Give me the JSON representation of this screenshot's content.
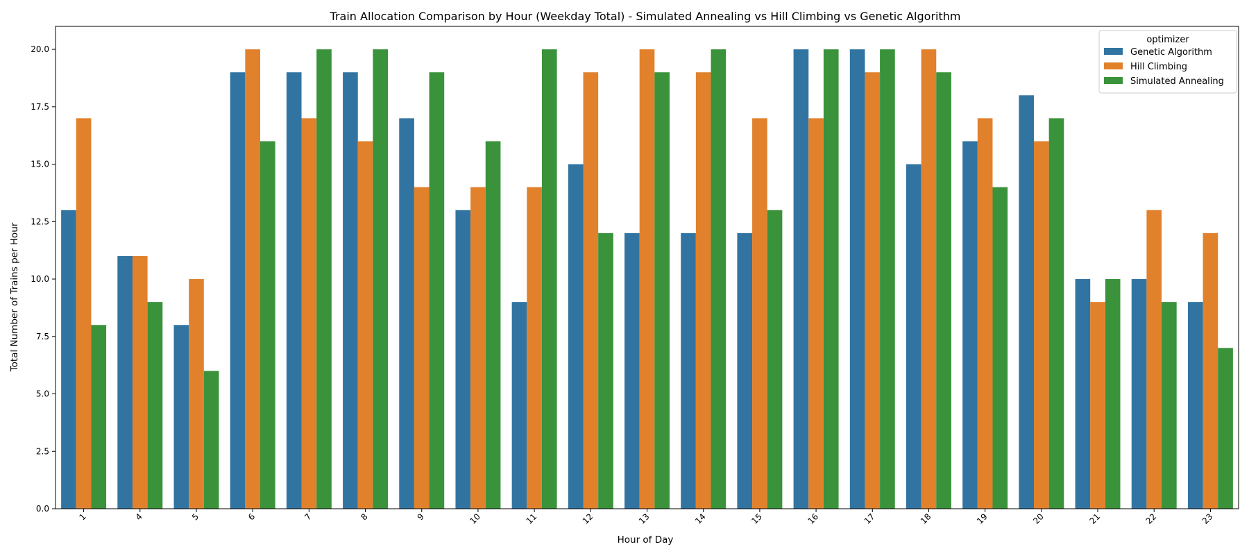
{
  "chart_data": {
    "type": "bar",
    "title": "Train Allocation Comparison by Hour (Weekday Total) - Simulated Annealing vs Hill Climbing vs Genetic Algorithm",
    "xlabel": "Hour of Day",
    "ylabel": "Total Number of Trains per Hour",
    "categories": [
      "1",
      "4",
      "5",
      "6",
      "7",
      "8",
      "9",
      "10",
      "11",
      "12",
      "13",
      "14",
      "15",
      "16",
      "17",
      "18",
      "19",
      "20",
      "21",
      "22",
      "23"
    ],
    "ylim": [
      0,
      21
    ],
    "yticks": [
      "0.0",
      "2.5",
      "5.0",
      "7.5",
      "10.0",
      "12.5",
      "15.0",
      "17.5",
      "20.0"
    ],
    "grid": false,
    "legend": {
      "title": "optimizer",
      "placement": "top-right"
    },
    "series": [
      {
        "name": "Genetic Algorithm",
        "color": "#3274a1",
        "values": [
          13,
          11,
          8,
          19,
          19,
          19,
          17,
          13,
          9,
          15,
          12,
          12,
          12,
          20,
          20,
          15,
          16,
          18,
          10,
          10,
          9
        ]
      },
      {
        "name": "Hill Climbing",
        "color": "#e1812c",
        "values": [
          17,
          11,
          10,
          20,
          17,
          16,
          14,
          14,
          14,
          19,
          20,
          19,
          17,
          17,
          19,
          20,
          17,
          16,
          9,
          13,
          12
        ]
      },
      {
        "name": "Simulated Annealing",
        "color": "#3a923a",
        "values": [
          8,
          9,
          6,
          16,
          20,
          20,
          19,
          16,
          20,
          12,
          19,
          20,
          13,
          20,
          20,
          19,
          14,
          17,
          10,
          9,
          7
        ]
      }
    ]
  }
}
